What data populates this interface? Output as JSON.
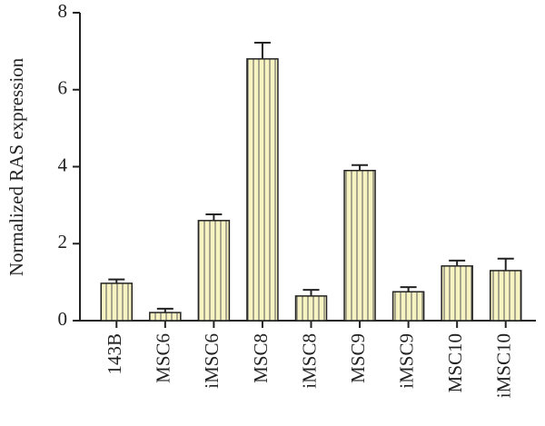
{
  "chart_data": {
    "type": "bar",
    "y_label": "Normalized RAS expression",
    "categories": [
      "143B",
      "MSC6",
      "iMSC6",
      "MSC8",
      "iMSC8",
      "MSC9",
      "iMSC9",
      "MSC10",
      "iMSC10"
    ],
    "values": [
      0.97,
      0.21,
      2.6,
      6.8,
      0.64,
      3.9,
      0.75,
      1.42,
      1.3
    ],
    "errors": [
      0.1,
      0.1,
      0.16,
      0.42,
      0.16,
      0.14,
      0.12,
      0.14,
      0.31
    ],
    "color": "#f7f4c2",
    "ylim": [
      0,
      8
    ],
    "yticks": [
      0,
      2,
      4,
      6,
      8
    ]
  }
}
